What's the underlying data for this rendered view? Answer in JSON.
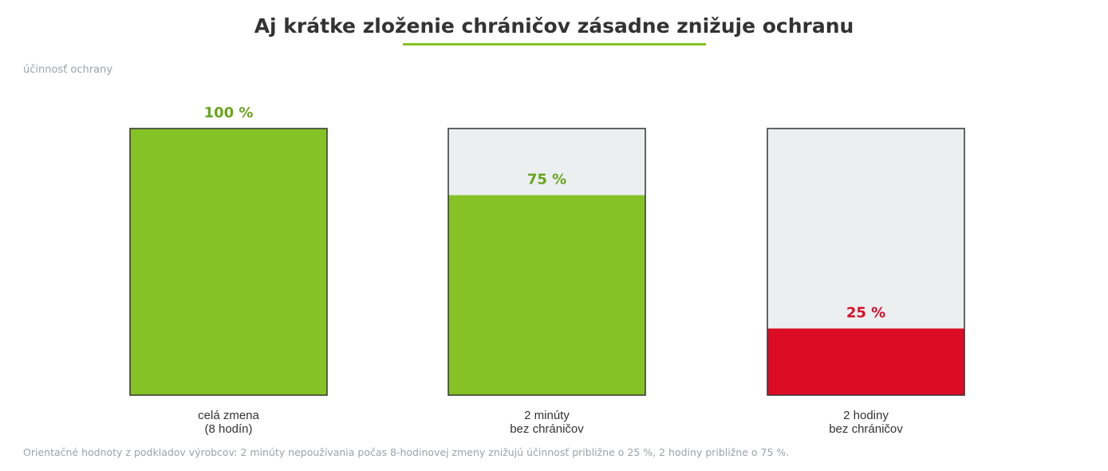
{
  "chart_data": {
    "type": "bar",
    "title": "Aj krátke zloženie chráničov zásadne znižuje ochranu",
    "ylabel": "účinnosť ochrany",
    "xlabel": "",
    "ylim": [
      0,
      100
    ],
    "categories": [
      [
        "celá zmena",
        "(8 hodín)"
      ],
      [
        "2 minúty",
        "bez chráničov"
      ],
      [
        "2 hodiny",
        "bez chráničov"
      ]
    ],
    "values": [
      100,
      75,
      25
    ],
    "value_labels": [
      "100 %",
      "75 %",
      "25 %"
    ],
    "grid": false,
    "legend": "none"
  },
  "colors": {
    "accent": "#85c226",
    "accent_text": "#6aa51c",
    "danger": "#dc0c26",
    "track": "#ebeff0",
    "border": "#333333",
    "muted": "#9aa3aa"
  },
  "footnote": "Orientačné hodnoty z podkladov výrobcov: 2 minúty nepoužívania počas 8-hodinovej zmeny znižujú účinnosť približne o 25 %, 2 hodiny približne o 75 %."
}
